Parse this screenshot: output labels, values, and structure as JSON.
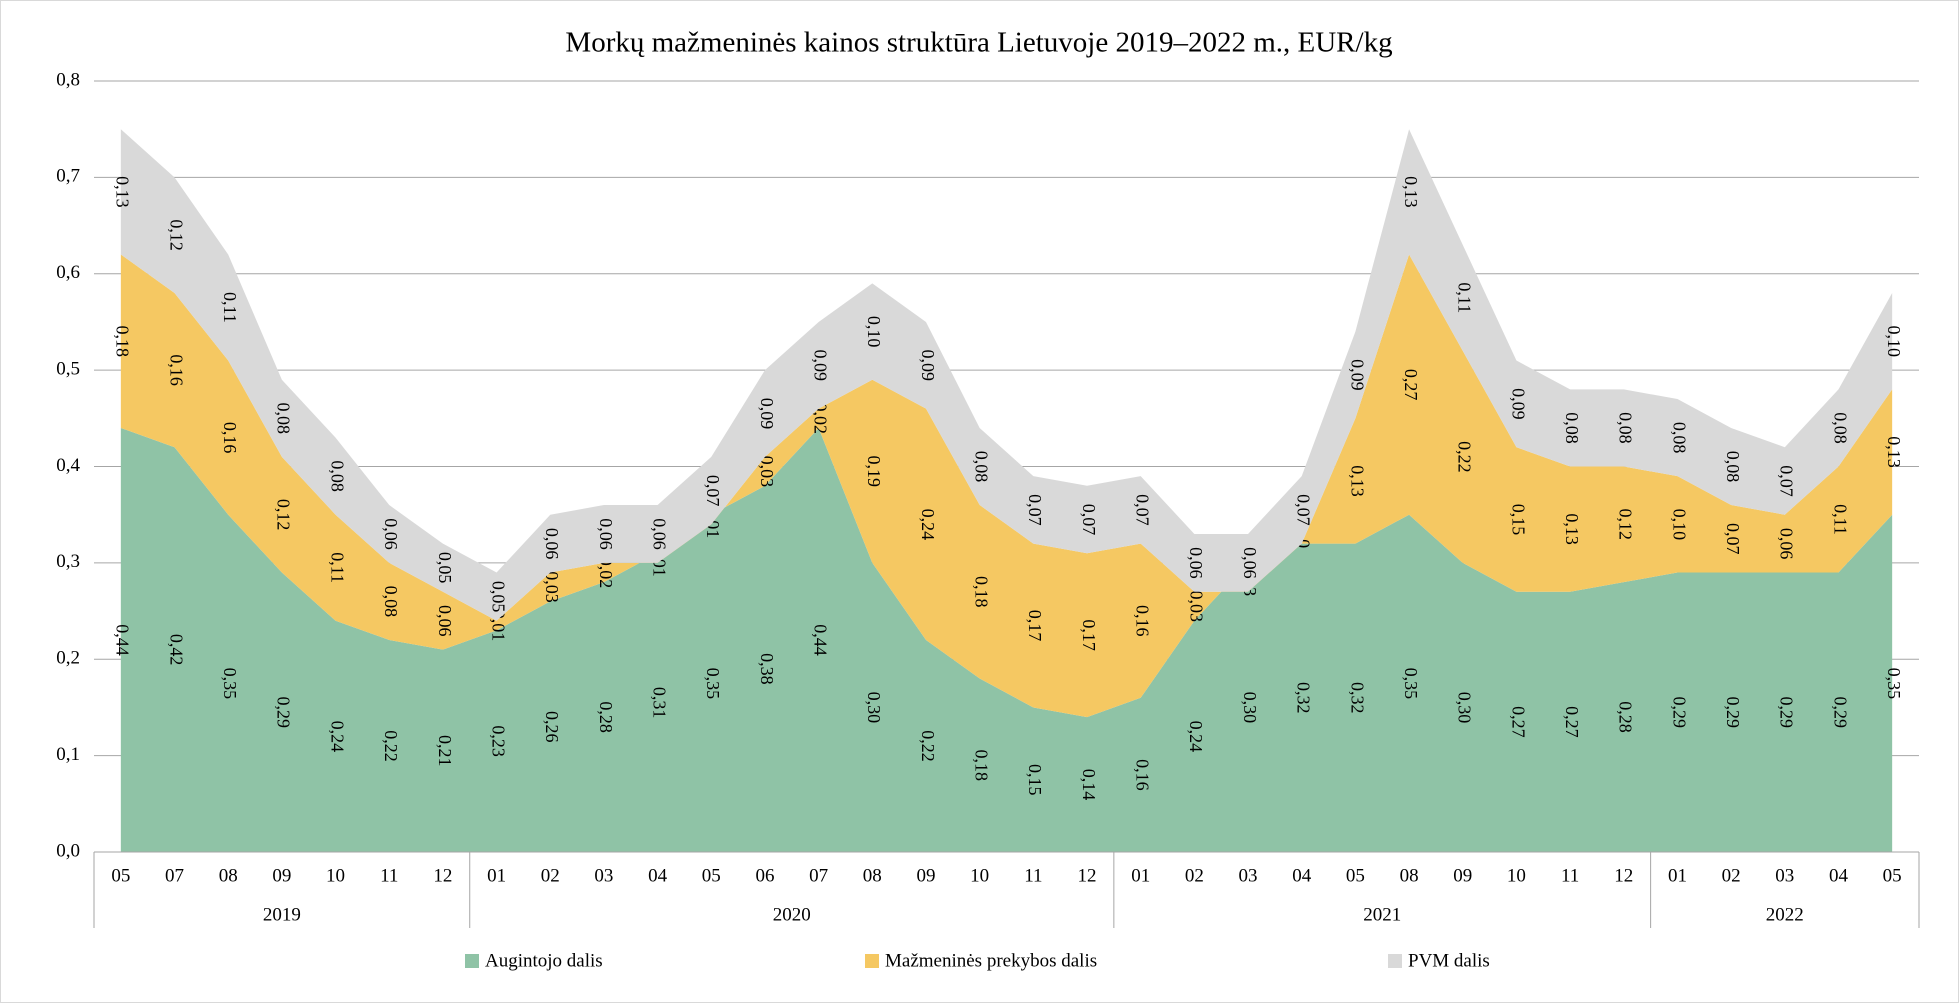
{
  "chart_data": {
    "type": "stacked_area",
    "title": "Morkų mažmeninės kainos struktūra Lietuvoje 2019–2022 m., EUR/kg",
    "categories": [
      "05",
      "07",
      "08",
      "09",
      "10",
      "11",
      "12",
      "01",
      "02",
      "03",
      "04",
      "05",
      "06",
      "07",
      "08",
      "09",
      "10",
      "11",
      "12",
      "01",
      "02",
      "03",
      "04",
      "05",
      "08",
      "09",
      "10",
      "11",
      "12",
      "01",
      "02",
      "03",
      "04",
      "05"
    ],
    "category_groups": [
      {
        "label": "2019",
        "size": 7
      },
      {
        "label": "2020",
        "size": 12
      },
      {
        "label": "2021",
        "size": 10
      },
      {
        "label": "2022",
        "size": 5
      }
    ],
    "series": [
      {
        "name": "Augintojo dalis",
        "color": "#8fc3a6",
        "values": [
          0.44,
          0.42,
          0.35,
          0.29,
          0.24,
          0.22,
          0.21,
          0.23,
          0.26,
          0.28,
          0.31,
          0.35,
          0.38,
          0.44,
          0.3,
          0.22,
          0.18,
          0.15,
          0.14,
          0.16,
          0.24,
          0.3,
          0.32,
          0.32,
          0.35,
          0.3,
          0.27,
          0.27,
          0.28,
          0.29,
          0.29,
          0.29,
          0.29,
          0.35
        ],
        "value_labels": [
          "0,44",
          "0,42",
          "0,35",
          "0,29",
          "0,24",
          "0,22",
          "0,21",
          "0,23",
          "0,26",
          "0,28",
          "0,31",
          "0,35",
          "0,38",
          "0,44",
          "0,30",
          "0,22",
          "0,18",
          "0,15",
          "0,14",
          "0,16",
          "0,24",
          "0,30",
          "0,32",
          "0,32",
          "0,35",
          "0,30",
          "0,27",
          "0,27",
          "0,28",
          "0,29",
          "0,29",
          "0,29",
          "0,29",
          "0,35"
        ]
      },
      {
        "name": "Mažmeninės prekybos dalis",
        "color": "#f5c862",
        "values": [
          0.18,
          0.16,
          0.16,
          0.12,
          0.11,
          0.08,
          0.06,
          0.01,
          0.03,
          0.02,
          -0.01,
          -0.01,
          0.03,
          0.02,
          0.19,
          0.24,
          0.18,
          0.17,
          0.17,
          0.16,
          0.03,
          -0.03,
          0,
          0.13,
          0.27,
          0.22,
          0.15,
          0.13,
          0.12,
          0.1,
          0.07,
          0.06,
          0.11,
          0.13
        ],
        "value_labels": [
          "0,18",
          "0,16",
          "0,16",
          "0,12",
          "0,11",
          "0,08",
          "0,06",
          "0,01",
          "0,03",
          "0,02",
          "-0,01",
          "-0,01",
          "0,03",
          "0,02",
          "0,19",
          "0,24",
          "0,18",
          "0,17",
          "0,17",
          "0,16",
          "0,03",
          "-0,03",
          "0",
          "0,13",
          "0,27",
          "0,22",
          "0,15",
          "0,13",
          "0,12",
          "0,10",
          "0,07",
          "0,06",
          "0,11",
          "0,13"
        ]
      },
      {
        "name": "PVM dalis",
        "color": "#d9d9d9",
        "values": [
          0.13,
          0.12,
          0.11,
          0.08,
          0.08,
          0.06,
          0.05,
          0.05,
          0.06,
          0.06,
          0.06,
          0.07,
          0.09,
          0.09,
          0.1,
          0.09,
          0.08,
          0.07,
          0.07,
          0.07,
          0.06,
          0.06,
          0.07,
          0.09,
          0.13,
          0.11,
          0.09,
          0.08,
          0.08,
          0.08,
          0.08,
          0.07,
          0.08,
          0.1
        ],
        "value_labels": [
          "0,13",
          "0,12",
          "0,11",
          "0,08",
          "0,08",
          "0,06",
          "0,05",
          "0,05",
          "0,06",
          "0,06",
          "0,06",
          "0,07",
          "0,09",
          "0,09",
          "0,10",
          "0,09",
          "0,08",
          "0,07",
          "0,07",
          "0,07",
          "0,06",
          "0,06",
          "0,07",
          "0,09",
          "0,13",
          "0,11",
          "0,09",
          "0,08",
          "0,08",
          "0,08",
          "0,08",
          "0,07",
          "0,08",
          "0,10"
        ]
      }
    ],
    "ylim": [
      0,
      0.8
    ],
    "yticks": [
      {
        "value": 0,
        "label": "0,0"
      },
      {
        "value": 0.1,
        "label": "0,1"
      },
      {
        "value": 0.2,
        "label": "0,2"
      },
      {
        "value": 0.3,
        "label": "0,3"
      },
      {
        "value": 0.4,
        "label": "0,4"
      },
      {
        "value": 0.5,
        "label": "0,5"
      },
      {
        "value": 0.6,
        "label": "0,6"
      },
      {
        "value": 0.7,
        "label": "0,7"
      },
      {
        "value": 0.8,
        "label": "0,8"
      }
    ],
    "grid": true,
    "legend": "bottom"
  }
}
